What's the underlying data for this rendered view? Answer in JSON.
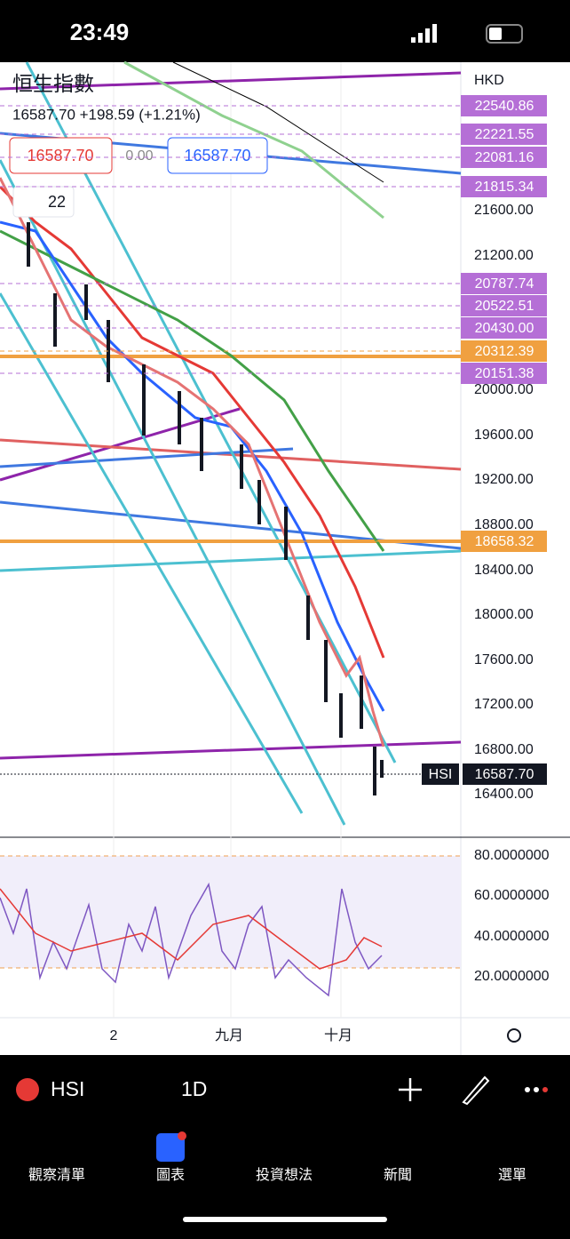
{
  "status": {
    "time": "23:49"
  },
  "chart": {
    "title": "恒生指數",
    "quote": "16587.70 +198.59 (+1.21%)",
    "sell": "16587.70",
    "spread": "0.00",
    "buy": "16587.70",
    "indicators": "22",
    "currency": "HKD",
    "price_axis": [
      "21600.00",
      "21200.00",
      "20000.00",
      "19600.00",
      "19200.00",
      "18800.00",
      "18400.00",
      "18000.00",
      "17600.00",
      "17200.00",
      "16800.00",
      "16400.00"
    ],
    "price_tags": [
      "22540.86",
      "22221.55",
      "22081.16",
      "21815.34",
      "20787.74",
      "20522.51",
      "20430.00",
      "20312.39",
      "20151.38",
      "18658.32"
    ],
    "last_symbol": "HSI",
    "last_price": "16587.70",
    "rsi_axis": [
      "80.0000000",
      "60.0000000",
      "40.0000000",
      "20.0000000"
    ],
    "time_axis": [
      "2",
      "九月",
      "十月"
    ]
  },
  "toolbar": {
    "symbol": "HSI",
    "interval": "1D"
  },
  "tabs": [
    "觀察清單",
    "圖表",
    "投資想法",
    "新聞",
    "選單"
  ]
}
